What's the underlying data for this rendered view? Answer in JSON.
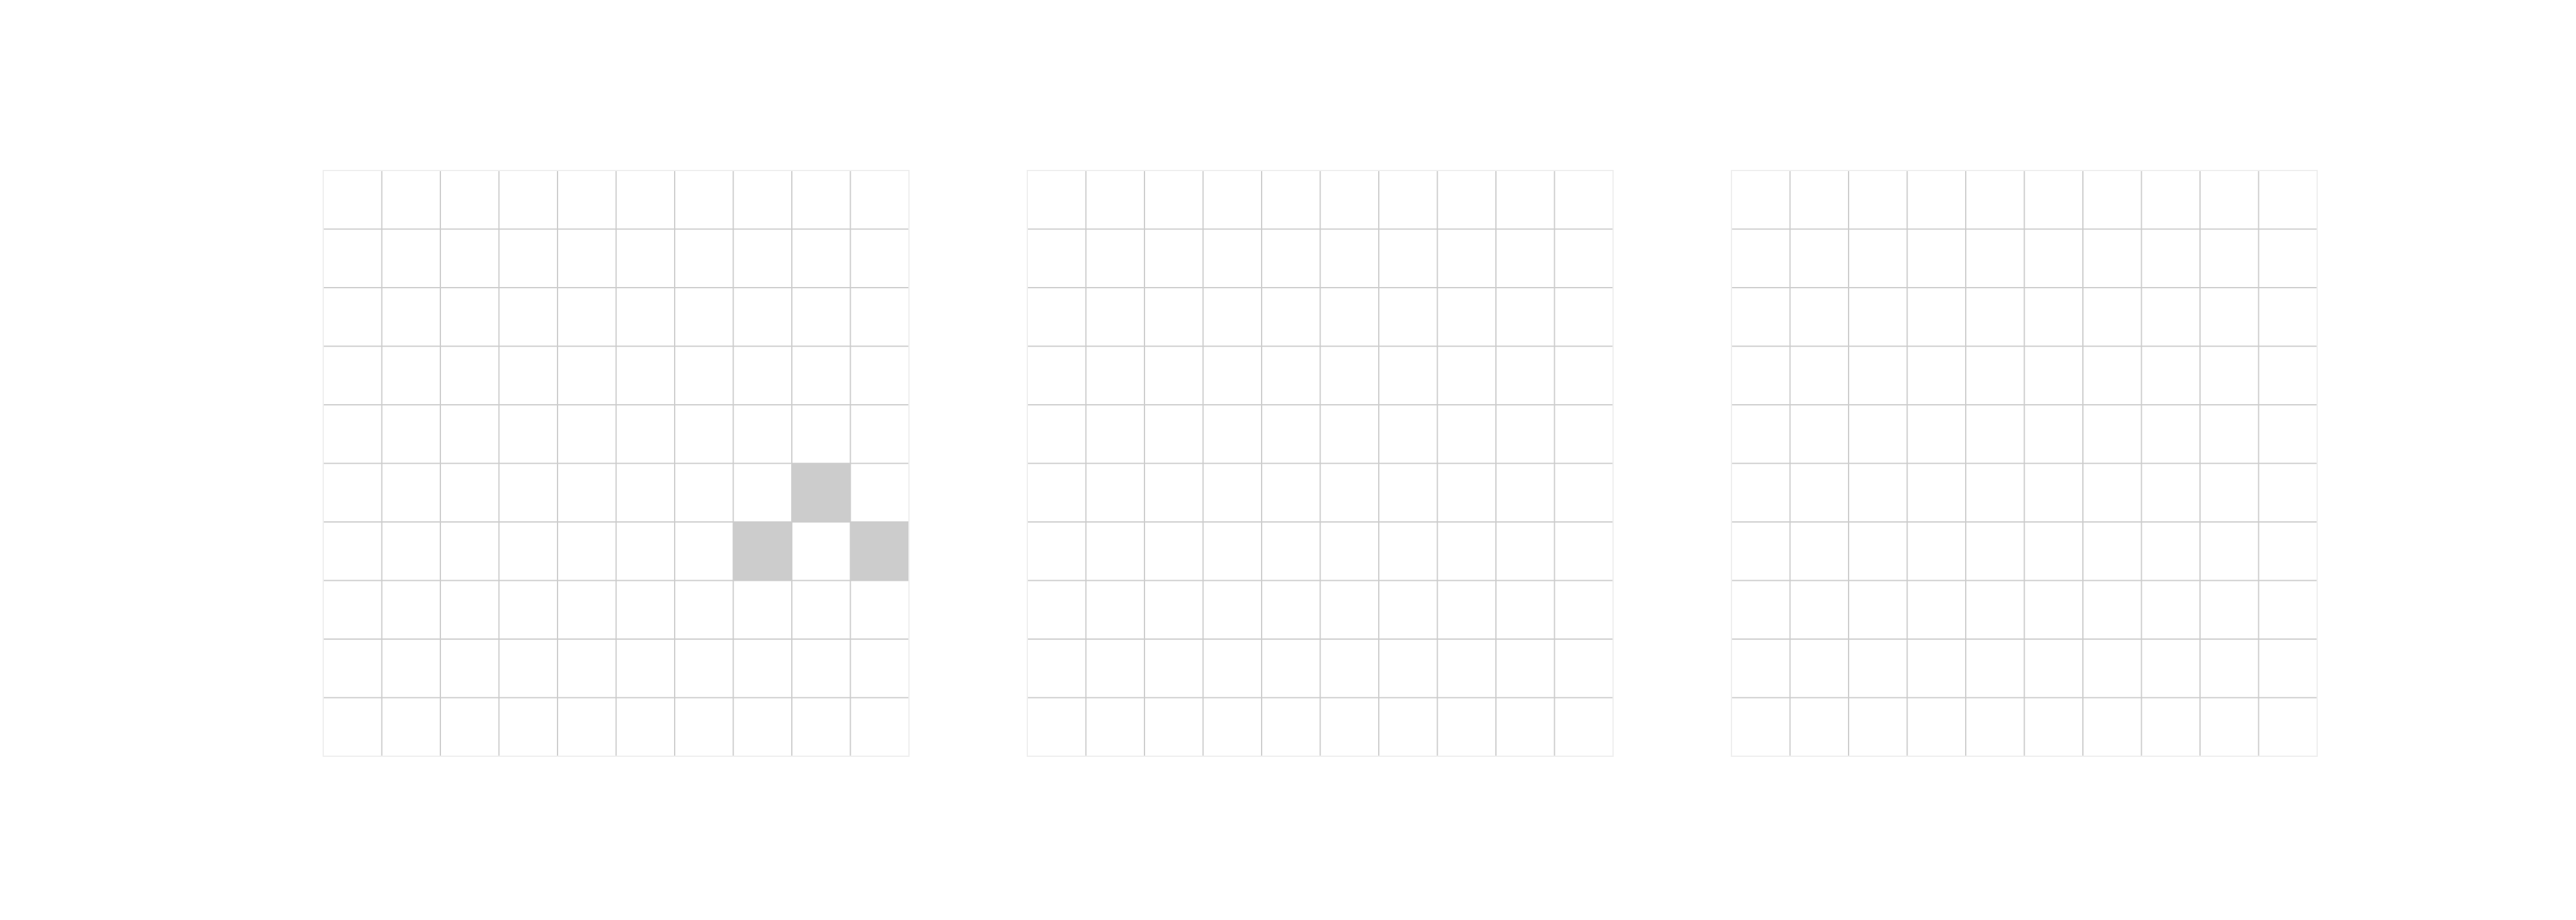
{
  "figure": {
    "suptitle_line1": "",
    "suptitle_line2": ""
  },
  "chart_data": [
    {
      "type": "heatmap",
      "title": "",
      "subtitle": "",
      "rows": 10,
      "cols": 10,
      "grid": true,
      "filled_cells": [
        {
          "row": 5,
          "col": 8
        },
        {
          "row": 6,
          "col": 7
        },
        {
          "row": 6,
          "col": 9
        }
      ],
      "cell_value": 1,
      "colors": {
        "filled": "#cccccc",
        "empty": "#ffffff",
        "grid": "#cccccc"
      }
    },
    {
      "type": "heatmap",
      "title": "",
      "subtitle": "",
      "rows": 10,
      "cols": 10,
      "grid": true,
      "filled_cells": [],
      "cell_value": 1,
      "colors": {
        "filled": "#cccccc",
        "empty": "#ffffff",
        "grid": "#cccccc"
      }
    },
    {
      "type": "heatmap",
      "title": "",
      "subtitle": "",
      "rows": 10,
      "cols": 10,
      "grid": true,
      "filled_cells": [],
      "cell_value": 1,
      "colors": {
        "filled": "#cccccc",
        "empty": "#ffffff",
        "grid": "#cccccc"
      }
    }
  ]
}
